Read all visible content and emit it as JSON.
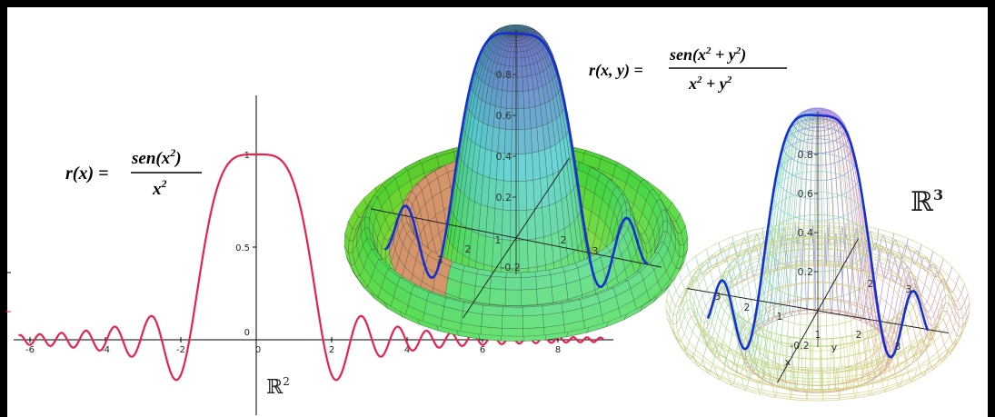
{
  "chart_data": [
    {
      "type": "line",
      "title": "",
      "formula": {
        "lhs": "r(x) =",
        "numerator": "sen(x",
        "numerator_exp": "2",
        "numerator_close": ")",
        "denominator": "x",
        "denominator_exp": "2"
      },
      "space_label": "ℝ",
      "space_exp": "2",
      "x_ticks": [
        "-6",
        "-4",
        "-2",
        "0",
        "2",
        "4",
        "6",
        "8"
      ],
      "y_ticks": [
        "0",
        "0.5",
        "1"
      ],
      "xlim": [
        -6.3,
        9.2
      ],
      "ylim": [
        -0.25,
        1.15
      ],
      "series": [
        {
          "function": "sin(x^2)/x^2",
          "x_range": [
            -6.3,
            9.2
          ],
          "color": "#e8224d"
        }
      ]
    },
    {
      "type": "surface",
      "style": "shaded",
      "formula": {
        "lhs": "r(x, y) =",
        "numerator": "sen(x",
        "numerator_exp": "2",
        "numerator_mid": " + y",
        "numerator_exp2": "2",
        "numerator_close": ")",
        "denominator": "x",
        "denominator_exp": "2",
        "denominator_mid": " + y",
        "denominator_exp2": "2"
      },
      "z_ticks": [
        "0.2",
        "0.4",
        "0.6",
        "0.8"
      ],
      "ground_ticks": [
        "3",
        "2",
        "1",
        "2",
        "3",
        "-0.2"
      ],
      "function": "sin(x^2+y^2)/(x^2+y^2)",
      "highlight_color": "#1530d0"
    },
    {
      "type": "surface",
      "style": "wireframe",
      "space_label": "ℝ",
      "space_exp": "3",
      "z_ticks": [
        "0.2",
        "0.4",
        "0.6",
        "0.8"
      ],
      "ground_ticks": [
        "3",
        "2",
        "1",
        "2",
        "3",
        "1",
        "2",
        "3",
        "-0.2"
      ],
      "axis_labels": [
        "x",
        "y"
      ],
      "function": "sin(x^2+y^2)/(x^2+y^2)",
      "highlight_color": "#1530d0"
    }
  ]
}
